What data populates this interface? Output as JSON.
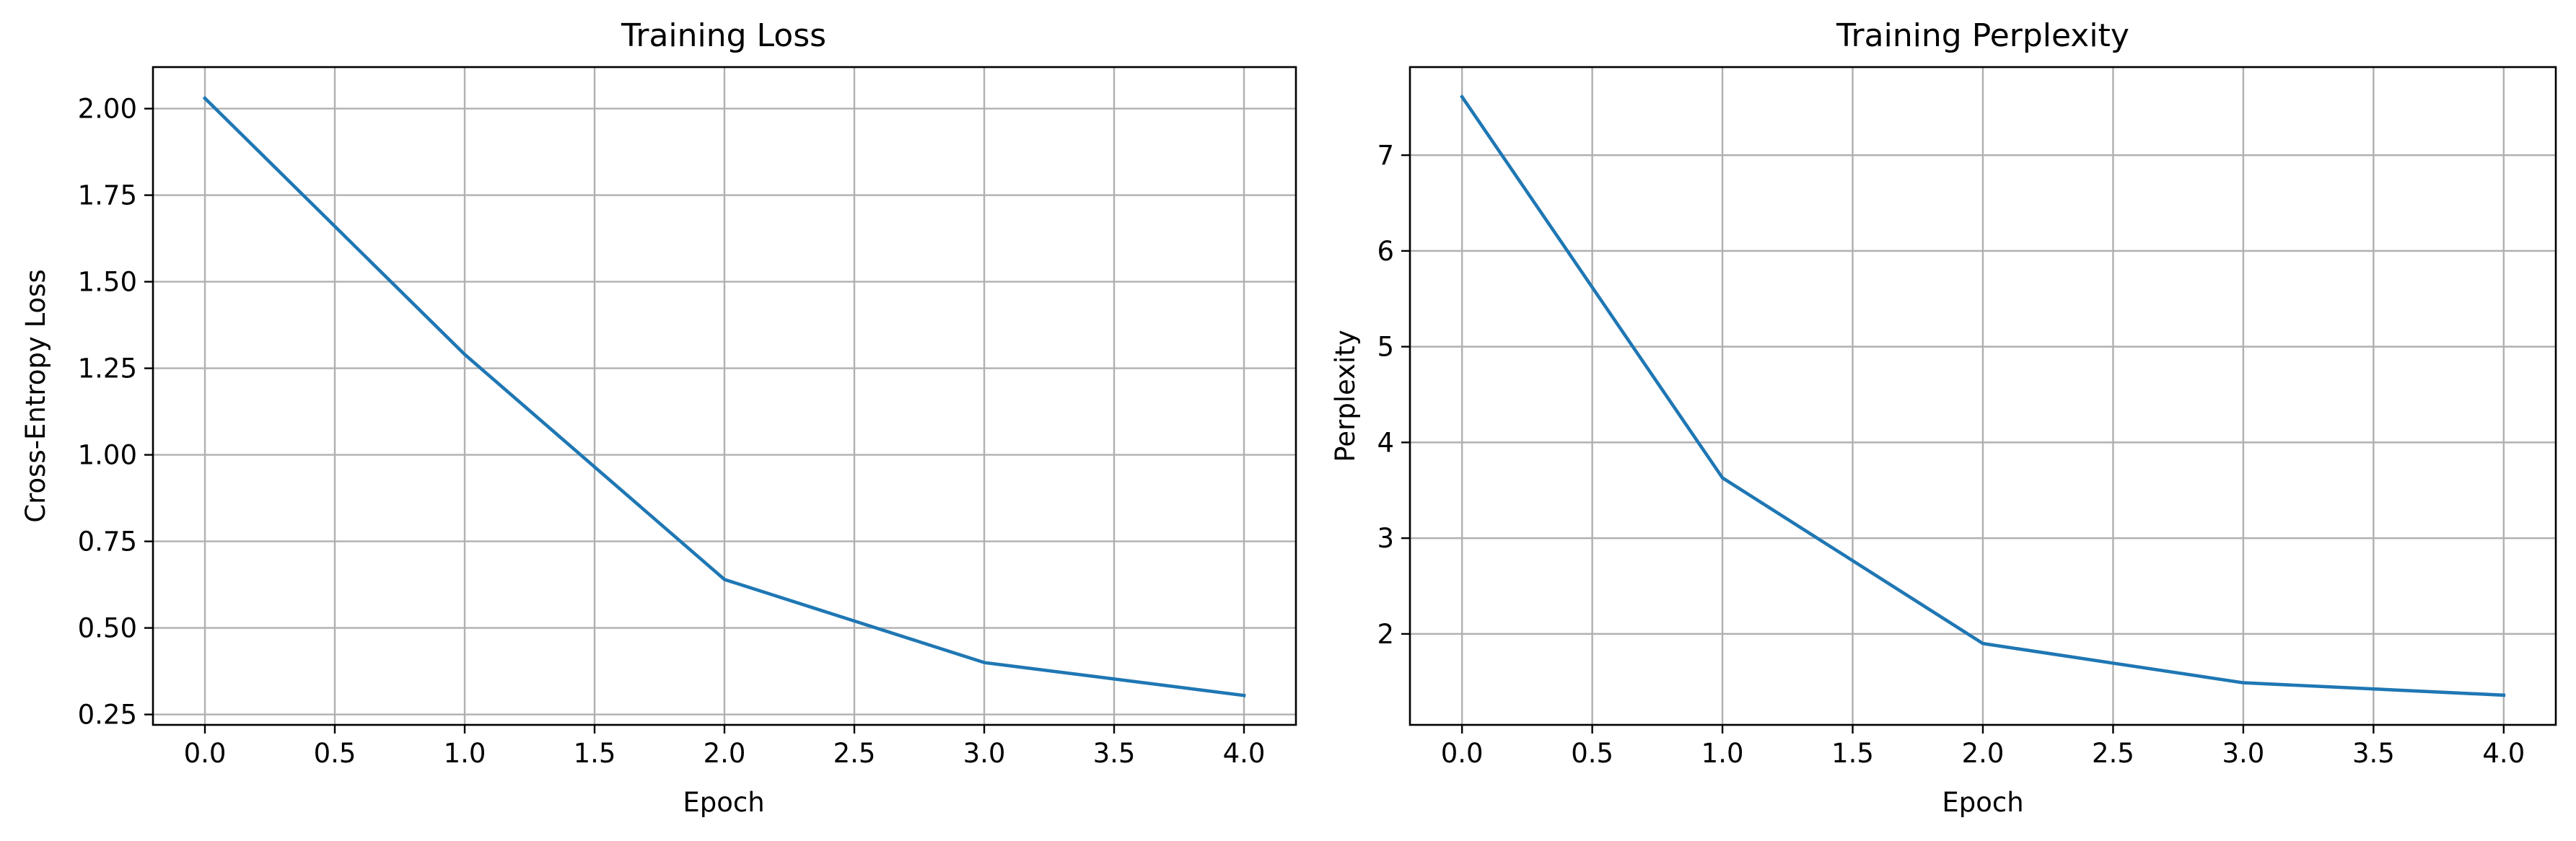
{
  "colors": {
    "series": "#1f77b4",
    "grid": "#b0b0b0"
  },
  "chart_data": [
    {
      "type": "line",
      "title": "Training Loss",
      "xlabel": "Epoch",
      "ylabel": "Cross-Entropy Loss",
      "x": [
        0,
        1,
        2,
        3,
        4
      ],
      "series": [
        {
          "values": [
            2.03,
            1.29,
            0.64,
            0.4,
            0.305
          ]
        }
      ],
      "xlim": [
        -0.2,
        4.2
      ],
      "ylim": [
        0.22,
        2.12
      ],
      "xticks": [
        0.0,
        0.5,
        1.0,
        1.5,
        2.0,
        2.5,
        3.0,
        3.5,
        4.0
      ],
      "xtick_labels": [
        "0.0",
        "0.5",
        "1.0",
        "1.5",
        "2.0",
        "2.5",
        "3.0",
        "3.5",
        "4.0"
      ],
      "yticks": [
        0.25,
        0.5,
        0.75,
        1.0,
        1.25,
        1.5,
        1.75,
        2.0
      ],
      "ytick_labels": [
        "0.25",
        "0.50",
        "0.75",
        "1.00",
        "1.25",
        "1.50",
        "1.75",
        "2.00"
      ],
      "grid": true
    },
    {
      "type": "line",
      "title": "Training Perplexity",
      "xlabel": "Epoch",
      "ylabel": "Perplexity",
      "x": [
        0,
        1,
        2,
        3,
        4
      ],
      "series": [
        {
          "values": [
            7.61,
            3.63,
            1.9,
            1.49,
            1.36
          ]
        }
      ],
      "xlim": [
        -0.2,
        4.2
      ],
      "ylim": [
        1.05,
        7.92
      ],
      "xticks": [
        0.0,
        0.5,
        1.0,
        1.5,
        2.0,
        2.5,
        3.0,
        3.5,
        4.0
      ],
      "xtick_labels": [
        "0.0",
        "0.5",
        "1.0",
        "1.5",
        "2.0",
        "2.5",
        "3.0",
        "3.5",
        "4.0"
      ],
      "yticks": [
        2,
        3,
        4,
        5,
        6,
        7
      ],
      "ytick_labels": [
        "2",
        "3",
        "4",
        "5",
        "6",
        "7"
      ],
      "grid": true
    }
  ]
}
